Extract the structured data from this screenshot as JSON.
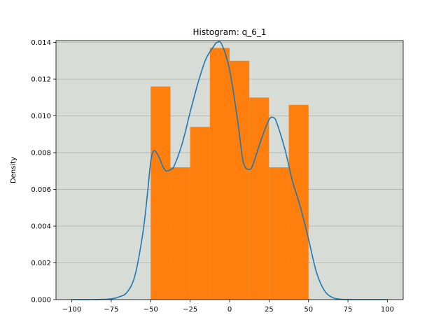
{
  "chart_data": {
    "type": "bar",
    "title": "Histogram: q_6_1",
    "xlabel": "",
    "ylabel": "Density",
    "xlim": [
      -110,
      110
    ],
    "ylim": [
      0,
      0.0141
    ],
    "xticks": [
      -100,
      -75,
      -50,
      -25,
      0,
      25,
      50,
      75,
      100
    ],
    "xtick_labels": [
      "−100",
      "−75",
      "−50",
      "−25",
      "0",
      "25",
      "50",
      "75",
      "100"
    ],
    "yticks": [
      0,
      0.002,
      0.004,
      0.006,
      0.008,
      0.01,
      0.012,
      0.014
    ],
    "ytick_labels": [
      "0.000",
      "0.002",
      "0.004",
      "0.006",
      "0.008",
      "0.010",
      "0.012",
      "0.014"
    ],
    "grid": "horizontal",
    "bins": [
      {
        "x0": -50,
        "x1": -37.5,
        "value": 0.0116
      },
      {
        "x0": -37.5,
        "x1": -25,
        "value": 0.0072
      },
      {
        "x0": -25,
        "x1": -12.5,
        "value": 0.0094
      },
      {
        "x0": -12.5,
        "x1": 0,
        "value": 0.0137
      },
      {
        "x0": 0,
        "x1": 12.5,
        "value": 0.013
      },
      {
        "x0": 12.5,
        "x1": 25,
        "value": 0.011
      },
      {
        "x0": 25,
        "x1": 37.5,
        "value": 0.0072
      },
      {
        "x0": 37.5,
        "x1": 50,
        "value": 0.0106
      }
    ],
    "density_curve": {
      "x": [
        -100,
        -85,
        -75,
        -70,
        -65,
        -60,
        -55,
        -52,
        -50,
        -48,
        -45,
        -42,
        -40,
        -37,
        -35,
        -30,
        -25,
        -20,
        -15,
        -10,
        -8,
        -5,
        0,
        5,
        8,
        10,
        13,
        15,
        20,
        25,
        28,
        30,
        35,
        40,
        45,
        50,
        55,
        60,
        65,
        70,
        75,
        80,
        100
      ],
      "y": [
        0,
        3e-06,
        4e-05,
        0.00015,
        0.0004,
        0.0013,
        0.0036,
        0.0058,
        0.0075,
        0.0081,
        0.0078,
        0.0072,
        0.007,
        0.0071,
        0.0073,
        0.0085,
        0.0102,
        0.0118,
        0.0131,
        0.0138,
        0.014,
        0.0139,
        0.0125,
        0.0098,
        0.0078,
        0.0072,
        0.0071,
        0.0074,
        0.0087,
        0.0098,
        0.0099,
        0.0096,
        0.0082,
        0.0064,
        0.005,
        0.0033,
        0.0015,
        0.0005,
        0.00012,
        2e-05,
        3e-06,
        0,
        0
      ]
    },
    "colors": {
      "bars": "#ff7f0e",
      "curve": "#1f77b4",
      "plot_background": "#d8dcd6",
      "grid": "#b0b0b0"
    }
  }
}
